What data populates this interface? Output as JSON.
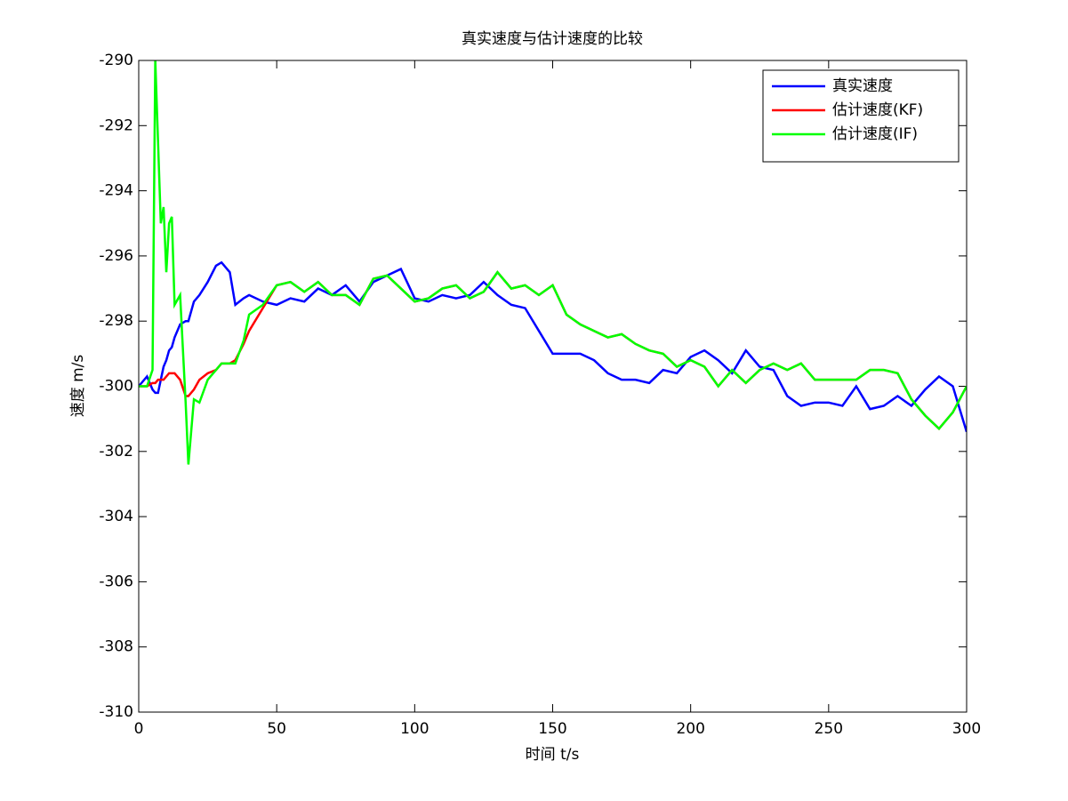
{
  "chart_data": {
    "type": "line",
    "title": "真实速度与估计速度的比较",
    "xlabel": "时间 t/s",
    "ylabel": "速度 m/s",
    "xlim": [
      0,
      300
    ],
    "xticks": [
      0,
      50,
      100,
      150,
      200,
      250,
      300
    ],
    "ylim": [
      -310,
      -290
    ],
    "yticks": [
      -310,
      -308,
      -306,
      -304,
      -302,
      -300,
      -298,
      -296,
      -294,
      -292,
      -290
    ],
    "legend": "upper right",
    "x": [
      0,
      3,
      5,
      6,
      7,
      8,
      9,
      10,
      11,
      12,
      13,
      15,
      17,
      18,
      20,
      22,
      25,
      28,
      30,
      33,
      35,
      38,
      40,
      45,
      50,
      55,
      60,
      65,
      70,
      75,
      80,
      85,
      90,
      95,
      100,
      105,
      110,
      115,
      120,
      125,
      130,
      135,
      140,
      145,
      150,
      155,
      160,
      165,
      170,
      175,
      180,
      185,
      190,
      195,
      200,
      205,
      210,
      215,
      220,
      225,
      230,
      235,
      240,
      245,
      250,
      255,
      260,
      265,
      270,
      275,
      280,
      285,
      290,
      295,
      300
    ],
    "series": [
      {
        "name": "真实速度",
        "color": "#0000ff",
        "values": [
          -300,
          -299.7,
          -300.1,
          -300.2,
          -300.2,
          -299.8,
          -299.4,
          -299.2,
          -298.9,
          -298.8,
          -298.5,
          -298.1,
          -298,
          -298,
          -297.4,
          -297.2,
          -296.8,
          -296.3,
          -296.2,
          -296.5,
          -297.5,
          -297.3,
          -297.2,
          -297.4,
          -297.5,
          -297.3,
          -297.4,
          -297,
          -297.2,
          -296.9,
          -297.4,
          -296.8,
          -296.6,
          -296.4,
          -297.3,
          -297.4,
          -297.2,
          -297.3,
          -297.2,
          -296.8,
          -297.2,
          -297.5,
          -297.6,
          -298.3,
          -299,
          -299,
          -299,
          -299.2,
          -299.6,
          -299.8,
          -299.8,
          -299.9,
          -299.5,
          -299.6,
          -299.1,
          -298.9,
          -299.2,
          -299.6,
          -298.9,
          -299.4,
          -299.5,
          -300.3,
          -300.6,
          -300.5,
          -300.5,
          -300.6,
          -300,
          -300.7,
          -300.6,
          -300.3,
          -300.6,
          -300.1,
          -299.7,
          -300,
          -301.4
        ]
      },
      {
        "name": "估计速度(KF)",
        "color": "#ff0000",
        "values": [
          -300,
          -300,
          -299.9,
          -299.9,
          -299.8,
          -299.8,
          -299.8,
          -299.7,
          -299.6,
          -299.6,
          -299.6,
          -299.8,
          -300.3,
          -300.3,
          -300.1,
          -299.8,
          -299.6,
          -299.5,
          -299.3,
          -299.3,
          -299.2,
          -298.7,
          -298.3,
          -297.6,
          -296.9,
          -296.8,
          -297.1,
          -296.8,
          -297.2,
          -297.2,
          -297.5,
          -296.7,
          -296.6,
          -297,
          -297.4,
          -297.3,
          -297,
          -296.9,
          -297.3,
          -297.1,
          -296.5,
          -297,
          -296.9,
          -297.2,
          -296.9,
          -297.8,
          -298.1,
          -298.3,
          -298.5,
          -298.4,
          -298.7,
          -298.9,
          -299,
          -299.4,
          -299.2,
          -299.4,
          -300,
          -299.5,
          -299.9,
          -299.5,
          -299.3,
          -299.5,
          -299.3,
          -299.8,
          -299.8,
          -299.8,
          -299.8,
          -299.5,
          -299.5,
          -299.6,
          -300.4,
          -300.9,
          -301.3,
          -300.8,
          -300
        ]
      },
      {
        "name": "估计速度(IF)",
        "color": "#00ff00",
        "values": [
          -300,
          -300,
          -299.5,
          -290,
          -292.5,
          -295,
          -294.5,
          -296.5,
          -295,
          -294.8,
          -297.5,
          -297.2,
          -300.5,
          -302.4,
          -300.4,
          -300.5,
          -299.8,
          -299.5,
          -299.3,
          -299.3,
          -299.3,
          -298.6,
          -297.8,
          -297.5,
          -296.9,
          -296.8,
          -297.1,
          -296.8,
          -297.2,
          -297.2,
          -297.5,
          -296.7,
          -296.6,
          -297,
          -297.4,
          -297.3,
          -297,
          -296.9,
          -297.3,
          -297.1,
          -296.5,
          -297,
          -296.9,
          -297.2,
          -296.9,
          -297.8,
          -298.1,
          -298.3,
          -298.5,
          -298.4,
          -298.7,
          -298.9,
          -299,
          -299.4,
          -299.2,
          -299.4,
          -300,
          -299.5,
          -299.9,
          -299.5,
          -299.3,
          -299.5,
          -299.3,
          -299.8,
          -299.8,
          -299.8,
          -299.8,
          -299.5,
          -299.5,
          -299.6,
          -300.4,
          -300.9,
          -301.3,
          -300.8,
          -300
        ]
      }
    ]
  }
}
